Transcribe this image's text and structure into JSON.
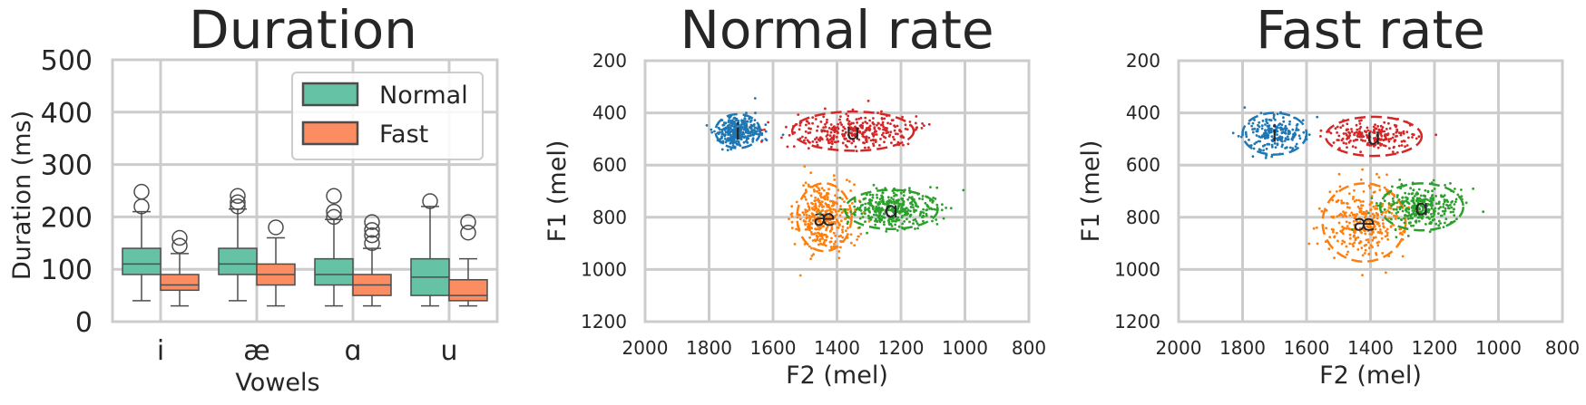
{
  "colors": {
    "normal": "#66c2a5",
    "fast": "#fc8d62",
    "i": "#1f77b4",
    "ae": "#ff7f0e",
    "a": "#2ca02c",
    "u": "#d62728",
    "grid": "#cccccc",
    "box_edge": "#4d4d4d"
  },
  "chart_data": [
    {
      "type": "box",
      "title": "Duration",
      "xlabel": "Vowels",
      "ylabel": "Duration (ms)",
      "ylim": [
        0,
        500
      ],
      "yticks": [
        "0",
        "100",
        "200",
        "300",
        "400",
        "500"
      ],
      "categories": [
        "i",
        "æ",
        "ɑ",
        "u"
      ],
      "legend": {
        "placement": "top-right",
        "entries": [
          "Normal",
          "Fast"
        ]
      },
      "grid": true,
      "series": [
        {
          "name": "Normal",
          "boxes": [
            {
              "min": 40,
              "q1": 90,
              "median": 110,
              "q3": 140,
              "max": 210,
              "outliers": [
                220,
                248
              ]
            },
            {
              "min": 40,
              "q1": 90,
              "median": 110,
              "q3": 140,
              "max": 215,
              "outliers": [
                220,
                228,
                240
              ]
            },
            {
              "min": 30,
              "q1": 70,
              "median": 90,
              "q3": 120,
              "max": 195,
              "outliers": [
                200,
                210,
                240
              ]
            },
            {
              "min": 30,
              "q1": 50,
              "median": 85,
              "q3": 120,
              "max": 220,
              "outliers": [
                230
              ]
            }
          ]
        },
        {
          "name": "Fast",
          "boxes": [
            {
              "min": 30,
              "q1": 60,
              "median": 70,
              "q3": 90,
              "max": 130,
              "outliers": [
                145,
                160
              ]
            },
            {
              "min": 30,
              "q1": 70,
              "median": 90,
              "q3": 110,
              "max": 160,
              "outliers": [
                180
              ]
            },
            {
              "min": 30,
              "q1": 50,
              "median": 70,
              "q3": 90,
              "max": 140,
              "outliers": [
                150,
                165,
                175,
                190
              ]
            },
            {
              "min": 30,
              "q1": 40,
              "median": 50,
              "q3": 80,
              "max": 120,
              "outliers": [
                170,
                190
              ]
            }
          ]
        }
      ]
    },
    {
      "type": "scatter",
      "title": "Normal rate",
      "xlabel": "F2 (mel)",
      "ylabel": "F1 (mel)",
      "xlim": [
        2000,
        800
      ],
      "ylim": [
        1200,
        200
      ],
      "xticks": [
        "2000",
        "1800",
        "1600",
        "1400",
        "1200",
        "1000",
        "800"
      ],
      "yticks": [
        "200",
        "400",
        "600",
        "800",
        "1000",
        "1200"
      ],
      "grid": true,
      "clusters": [
        {
          "label": "i",
          "color_key": "i",
          "center": [
            1710,
            470
          ],
          "spread": [
            35,
            30
          ],
          "ellipse": [
            70,
            65
          ],
          "n": 320
        },
        {
          "label": "u",
          "color_key": "u",
          "center": [
            1350,
            470
          ],
          "spread": [
            95,
            30
          ],
          "ellipse": [
            190,
            75
          ],
          "n": 320
        },
        {
          "label": "æ",
          "color_key": "ae",
          "center": [
            1440,
            800
          ],
          "spread": [
            45,
            65
          ],
          "ellipse": [
            85,
            130
          ],
          "n": 360
        },
        {
          "label": "ɑ",
          "color_key": "a",
          "center": [
            1230,
            770
          ],
          "spread": [
            70,
            35
          ],
          "ellipse": [
            145,
            75
          ],
          "n": 360
        }
      ]
    },
    {
      "type": "scatter",
      "title": "Fast rate",
      "xlabel": "F2 (mel)",
      "ylabel": "F1 (mel)",
      "xlim": [
        2000,
        800
      ],
      "ylim": [
        1200,
        200
      ],
      "xticks": [
        "2000",
        "1800",
        "1600",
        "1400",
        "1200",
        "1000",
        "800"
      ],
      "yticks": [
        "200",
        "400",
        "600",
        "800",
        "1000",
        "1200"
      ],
      "grid": true,
      "clusters": [
        {
          "label": "i",
          "color_key": "i",
          "center": [
            1700,
            480
          ],
          "spread": [
            45,
            35
          ],
          "ellipse": [
            100,
            80
          ],
          "n": 220
        },
        {
          "label": "u",
          "color_key": "u",
          "center": [
            1390,
            490
          ],
          "spread": [
            65,
            25
          ],
          "ellipse": [
            150,
            75
          ],
          "n": 200
        },
        {
          "label": "æ",
          "color_key": "ae",
          "center": [
            1420,
            820
          ],
          "spread": [
            60,
            70
          ],
          "ellipse": [
            130,
            150
          ],
          "n": 300
        },
        {
          "label": "ɑ",
          "color_key": "a",
          "center": [
            1240,
            760
          ],
          "spread": [
            60,
            40
          ],
          "ellipse": [
            130,
            90
          ],
          "n": 300
        }
      ]
    }
  ]
}
